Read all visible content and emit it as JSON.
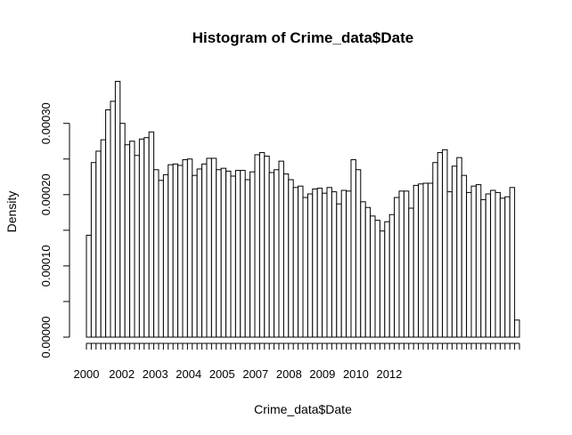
{
  "chart_data": {
    "type": "bar",
    "title": "Histogram of Crime_data$Date",
    "xlabel": "Crime_data$Date",
    "ylabel": "Density",
    "x_tick_labels": [
      "2000",
      "2002",
      "2003",
      "2004",
      "2005",
      "2007",
      "2008",
      "2009",
      "2010",
      "2012"
    ],
    "y_tick_labels": [
      "0.00000",
      "0.00010",
      "0.00020",
      "0.00030"
    ],
    "y_ticks": [
      0,
      5e-05,
      0.0001,
      0.00015,
      0.0002,
      0.00025,
      0.0003
    ],
    "ylim": [
      0,
      0.00036
    ],
    "grid": false,
    "bar_fill": "#ffffff",
    "bar_stroke": "#000000",
    "values": [
      0.000143,
      0.000245,
      0.000261,
      0.000277,
      0.000319,
      0.000331,
      0.000359,
      0.0003,
      0.00027,
      0.000275,
      0.000255,
      0.000278,
      0.00028,
      0.000288,
      0.000235,
      0.00022,
      0.000228,
      0.000242,
      0.000243,
      0.000241,
      0.000249,
      0.00025,
      0.000227,
      0.000236,
      0.000243,
      0.000251,
      0.000251,
      0.000235,
      0.000237,
      0.000233,
      0.000226,
      0.000234,
      0.000234,
      0.000221,
      0.000232,
      0.000256,
      0.000259,
      0.000254,
      0.000231,
      0.000235,
      0.000247,
      0.000229,
      0.000221,
      0.00021,
      0.000212,
      0.000196,
      0.000201,
      0.000208,
      0.000209,
      0.000202,
      0.00021,
      0.000204,
      0.000187,
      0.000206,
      0.000205,
      0.000249,
      0.000235,
      0.00019,
      0.000182,
      0.00017,
      0.000164,
      0.000149,
      0.000162,
      0.000172,
      0.000196,
      0.000205,
      0.000205,
      0.000181,
      0.000213,
      0.000215,
      0.000216,
      0.000216,
      0.000245,
      0.000259,
      0.000263,
      0.000204,
      0.00024,
      0.000252,
      0.000227,
      0.000203,
      0.000212,
      0.000214,
      0.000193,
      0.000201,
      0.000206,
      0.000203,
      0.000195,
      0.000197,
      0.00021,
      2.4e-05
    ]
  }
}
